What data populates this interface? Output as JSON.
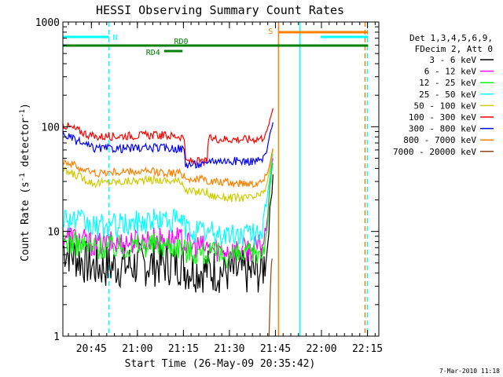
{
  "chart_data": {
    "type": "line",
    "title": "HESSI Observing Summary Count Rates",
    "xlabel": "Start Time (26-May-09 20:35:42)",
    "ylabel_main": "Count Rate (s",
    "ylabel_sup1": "-1",
    "ylabel_mid": " detector",
    "ylabel_sup2": "-1",
    "ylabel_end": ")",
    "x_axis_minutes_range": [
      0,
      103
    ],
    "x_ticks": [
      {
        "label": "20:45",
        "minute": 9.3
      },
      {
        "label": "21:00",
        "minute": 24.3
      },
      {
        "label": "21:15",
        "minute": 39.3
      },
      {
        "label": "21:30",
        "minute": 54.3
      },
      {
        "label": "21:45",
        "minute": 69.3
      },
      {
        "label": "22:00",
        "minute": 84.3
      },
      {
        "label": "22:15",
        "minute": 99.3
      }
    ],
    "y_scale": "log",
    "ylim": [
      1,
      1000
    ],
    "y_ticks": [
      {
        "label": "1",
        "value": 1
      },
      {
        "label": "10",
        "value": 10
      },
      {
        "label": "100",
        "value": 100
      },
      {
        "label": "1000",
        "value": 1000
      }
    ],
    "legend_title_lines": [
      "Det 1,3,4,5,6,9,",
      "FDecim 2, Att 0"
    ],
    "series": [
      {
        "name": "3 - 6 keV",
        "color": "#000000",
        "values": [
          [
            0,
            7
          ],
          [
            5,
            5.5
          ],
          [
            10,
            4.6
          ],
          [
            20,
            4.7
          ],
          [
            30,
            4.9
          ],
          [
            38,
            5.0
          ],
          [
            39.5,
            4.8
          ],
          [
            40,
            4.4
          ],
          [
            50,
            4.2
          ],
          [
            55,
            4.1
          ],
          [
            62,
            4.0
          ],
          [
            65,
            4.2
          ],
          [
            66.5,
            6
          ],
          [
            67.5,
            15
          ],
          [
            68.5,
            35
          ]
        ]
      },
      {
        "name": "6 - 12 keV",
        "color": "#ff00ff",
        "values": [
          [
            0,
            9.5
          ],
          [
            5,
            8.5
          ],
          [
            10,
            7.5
          ],
          [
            20,
            7.8
          ],
          [
            30,
            8.5
          ],
          [
            38,
            8.3
          ],
          [
            39.5,
            8.0
          ],
          [
            40,
            7.5
          ],
          [
            50,
            6.8
          ],
          [
            55,
            6.6
          ],
          [
            62,
            6.8
          ],
          [
            65,
            7.5
          ],
          [
            66.5,
            11
          ],
          [
            67.5,
            30
          ],
          [
            68.5,
            50
          ]
        ]
      },
      {
        "name": "12 - 25 keV",
        "color": "#00ff00",
        "values": [
          [
            0,
            8
          ],
          [
            5,
            7.5
          ],
          [
            10,
            7
          ],
          [
            20,
            7.2
          ],
          [
            30,
            7.5
          ],
          [
            38,
            7.3
          ],
          [
            39.5,
            7.0
          ],
          [
            40,
            6.5
          ],
          [
            50,
            6.0
          ],
          [
            55,
            5.8
          ],
          [
            62,
            6.0
          ],
          [
            65,
            6.5
          ],
          [
            66.5,
            10
          ],
          [
            67.5,
            25
          ],
          [
            68.5,
            45
          ]
        ]
      },
      {
        "name": "25 - 50 keV",
        "color": "#00ffff",
        "values": [
          [
            0,
            14
          ],
          [
            5,
            12.5
          ],
          [
            10,
            11
          ],
          [
            20,
            11.5
          ],
          [
            30,
            13
          ],
          [
            38,
            12.5
          ],
          [
            39.5,
            12
          ],
          [
            40,
            10.5
          ],
          [
            50,
            9.5
          ],
          [
            55,
            9.2
          ],
          [
            62,
            9.5
          ],
          [
            65,
            10.5
          ],
          [
            66.5,
            18
          ],
          [
            67.5,
            35
          ],
          [
            68.5,
            55
          ]
        ]
      },
      {
        "name": "50 - 100 keV",
        "color": "#cccc00",
        "values": [
          [
            0,
            38
          ],
          [
            5,
            34
          ],
          [
            10,
            29
          ],
          [
            20,
            30
          ],
          [
            30,
            31
          ],
          [
            38,
            30
          ],
          [
            39.5,
            29
          ],
          [
            40,
            24
          ],
          [
            45,
            24
          ],
          [
            47,
            24
          ],
          [
            47.5,
            22
          ],
          [
            55,
            21
          ],
          [
            62,
            21
          ],
          [
            65,
            22.5
          ],
          [
            66.5,
            28
          ],
          [
            67.5,
            40
          ],
          [
            68.5,
            60
          ]
        ]
      },
      {
        "name": "100 - 300 keV",
        "color": "#ff0000",
        "values": [
          [
            0,
            105
          ],
          [
            5,
            92
          ],
          [
            10,
            80
          ],
          [
            20,
            82
          ],
          [
            30,
            83
          ],
          [
            38,
            81
          ],
          [
            39.5,
            80
          ],
          [
            40,
            47
          ],
          [
            47,
            46
          ],
          [
            47.5,
            77
          ],
          [
            55,
            76
          ],
          [
            62,
            76
          ],
          [
            65,
            78
          ],
          [
            66.5,
            90
          ],
          [
            67.5,
            115
          ],
          [
            68.5,
            150
          ]
        ]
      },
      {
        "name": "300 - 800 keV",
        "color": "#0000ff",
        "values": [
          [
            0,
            85
          ],
          [
            5,
            72
          ],
          [
            10,
            62
          ],
          [
            20,
            62
          ],
          [
            30,
            63
          ],
          [
            38,
            62
          ],
          [
            39.5,
            61
          ],
          [
            40,
            44
          ],
          [
            47,
            43
          ],
          [
            47.5,
            48
          ],
          [
            55,
            47
          ],
          [
            62,
            47
          ],
          [
            65,
            48
          ],
          [
            66.5,
            58
          ],
          [
            67.5,
            85
          ],
          [
            68.5,
            110
          ]
        ]
      },
      {
        "name": "800 - 7000 keV",
        "color": "#ff8000",
        "values": [
          [
            0,
            48
          ],
          [
            5,
            41
          ],
          [
            10,
            36
          ],
          [
            20,
            37
          ],
          [
            30,
            37
          ],
          [
            38,
            36
          ],
          [
            39.5,
            35
          ],
          [
            40,
            32
          ],
          [
            47,
            31
          ],
          [
            47.5,
            30
          ],
          [
            55,
            29
          ],
          [
            62,
            29
          ],
          [
            65,
            30
          ],
          [
            66.5,
            35
          ],
          [
            67.5,
            45
          ],
          [
            68.5,
            62
          ]
        ]
      },
      {
        "name": "7000 - 20000 keV",
        "color": "#8b4513",
        "values": [
          [
            67.2,
            1
          ],
          [
            67.6,
            2.5
          ],
          [
            67.9,
            4.5
          ],
          [
            68.2,
            5.5
          ]
        ]
      }
    ],
    "flag_bars": [
      {
        "label": "N",
        "color": "#00ffff",
        "start": 0,
        "end": 15,
        "level": "upper"
      },
      {
        "label": "",
        "color": "#00ffff",
        "start": 84,
        "end": 99.5,
        "level": "upper"
      },
      {
        "label": "S",
        "color": "#ff8000",
        "start": 70.3,
        "end": 99.5,
        "level": "top"
      },
      {
        "label": "RD0",
        "color": "#008000",
        "start": 0,
        "end": 99.5,
        "level": "middle"
      },
      {
        "label": "RD4",
        "color": "#008000",
        "start": 33,
        "end": 39,
        "level": "lower"
      }
    ],
    "vertical_markers": [
      {
        "minute": 15,
        "color": "#00ffff",
        "style": "dashed"
      },
      {
        "minute": 70.3,
        "color": "#ff8000",
        "style": "solid"
      },
      {
        "minute": 77.3,
        "color": "#00ffff",
        "style": "solid"
      },
      {
        "minute": 98.5,
        "color": "#ff8000",
        "style": "dashed"
      },
      {
        "minute": 99.3,
        "color": "#00ffff",
        "style": "dashed"
      }
    ],
    "grid": false,
    "legend_position": "right"
  },
  "footer_timestamp": "7-Mar-2010 11:18"
}
